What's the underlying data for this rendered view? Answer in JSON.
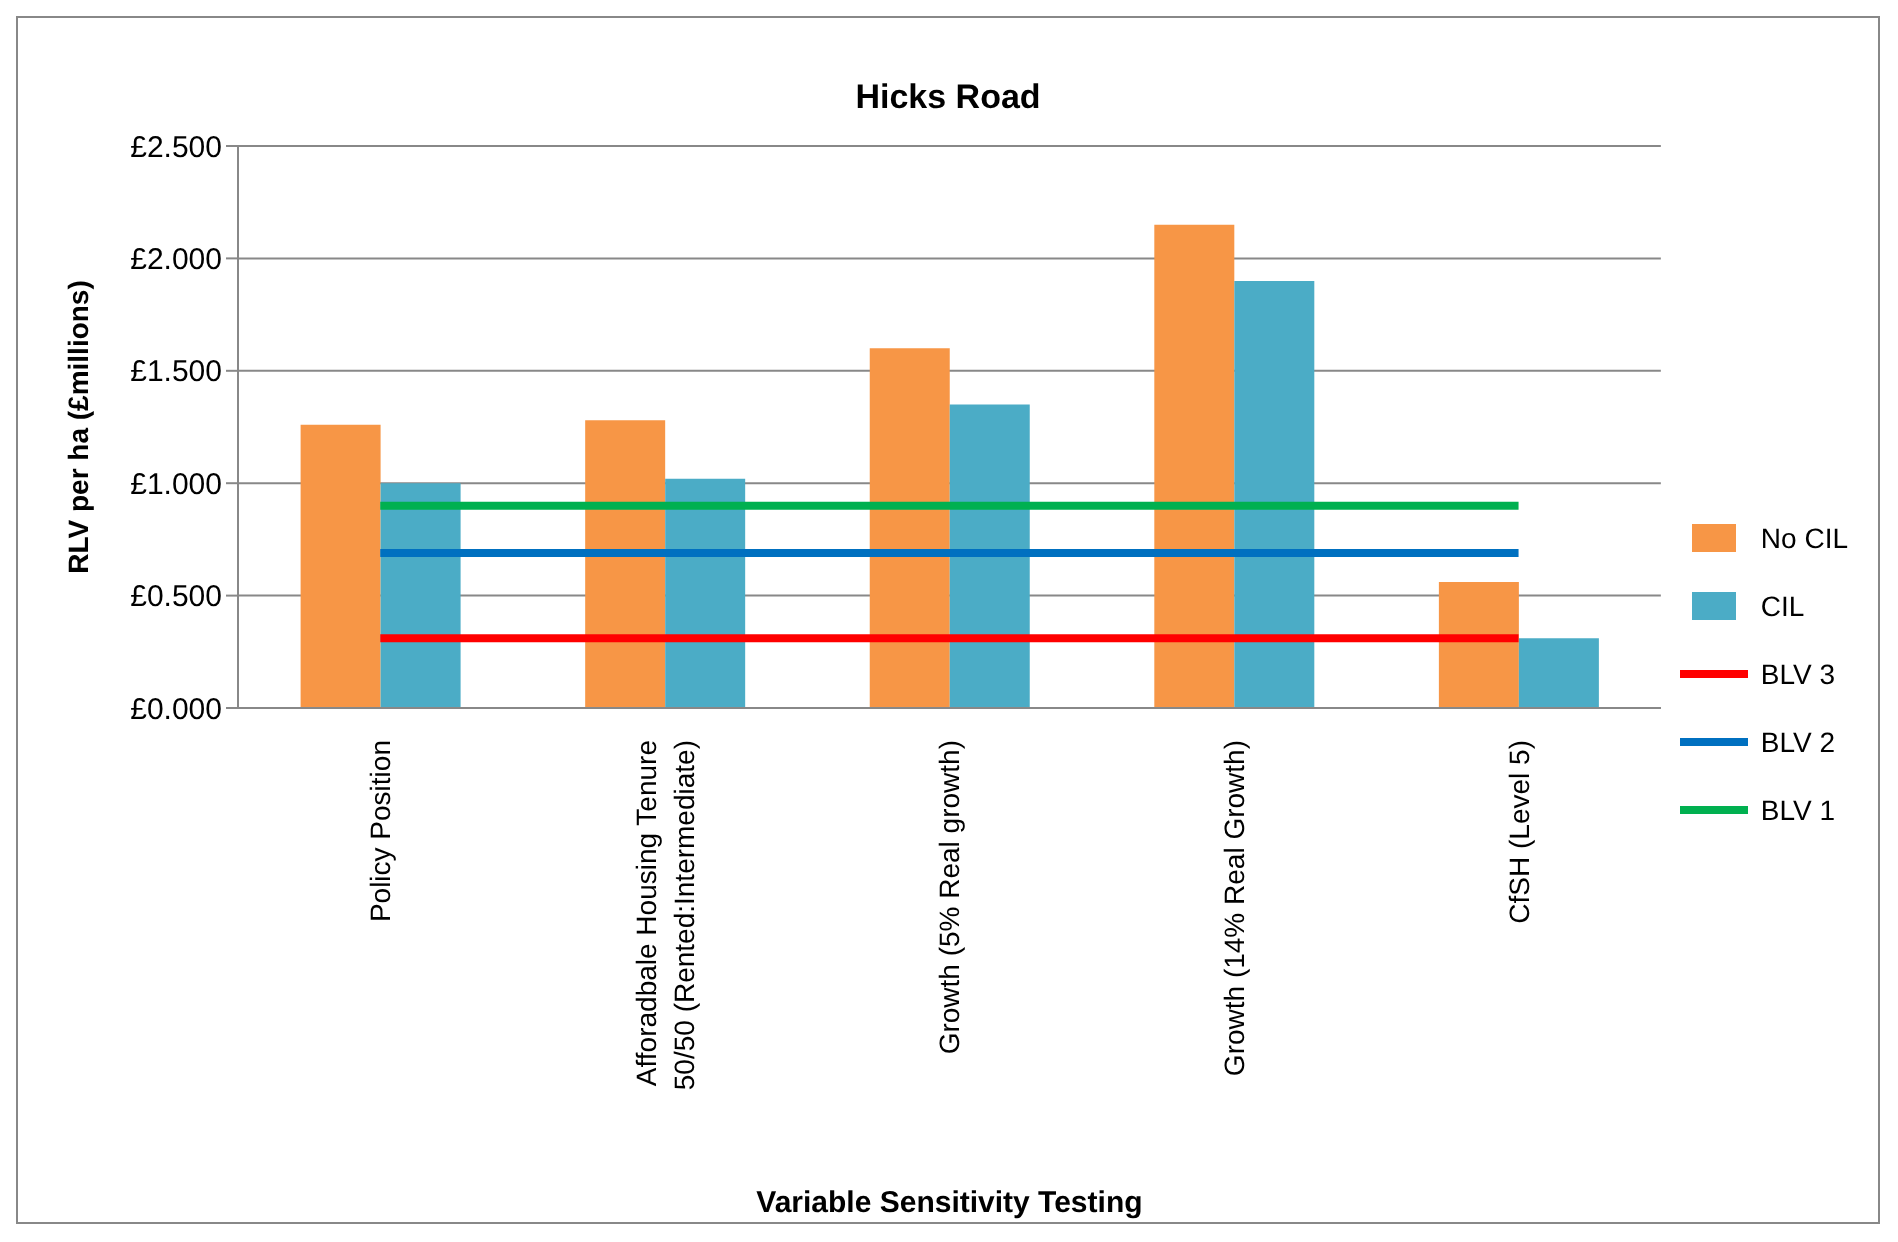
{
  "chart_data": {
    "type": "bar",
    "title": "Hicks Road",
    "xlabel": "Variable Sensitivity Testing",
    "ylabel": "RLV per ha (£millions)",
    "categories": [
      "Policy Position",
      "Afforadbale Housing Tenure 50/50 (Rented:Intermediate)",
      "Growth (5% Real growth)",
      "Growth (14% Real Growth)",
      "CfSH (Level 5)"
    ],
    "series": [
      {
        "name": "No CIL",
        "color": "#f79646",
        "values": [
          1.26,
          1.28,
          1.6,
          2.15,
          0.56
        ]
      },
      {
        "name": "CIL",
        "color": "#4bacc6",
        "values": [
          1.0,
          1.02,
          1.35,
          1.9,
          0.31
        ]
      },
      {
        "name": "BLV 3",
        "type": "line",
        "color": "#ff0000",
        "values": [
          0.31,
          0.31,
          0.31,
          0.31,
          0.31
        ]
      },
      {
        "name": "BLV 2",
        "type": "line",
        "color": "#0070c0",
        "values": [
          0.69,
          0.69,
          0.69,
          0.69,
          0.69
        ]
      },
      {
        "name": "BLV 1",
        "type": "line",
        "color": "#00b050",
        "values": [
          0.9,
          0.9,
          0.9,
          0.9,
          0.9
        ]
      }
    ],
    "ylim": [
      0,
      2.5
    ],
    "yticks": [
      {
        "value": 0,
        "label": "£0.000"
      },
      {
        "value": 0.5,
        "label": "£0.500"
      },
      {
        "value": 1,
        "label": "£1.000"
      },
      {
        "value": 1.5,
        "label": "£1.500"
      },
      {
        "value": 2,
        "label": "£2.000"
      },
      {
        "value": 2.5,
        "label": "£2.500"
      }
    ],
    "grid": "y",
    "legend": "right",
    "marker": "none"
  }
}
